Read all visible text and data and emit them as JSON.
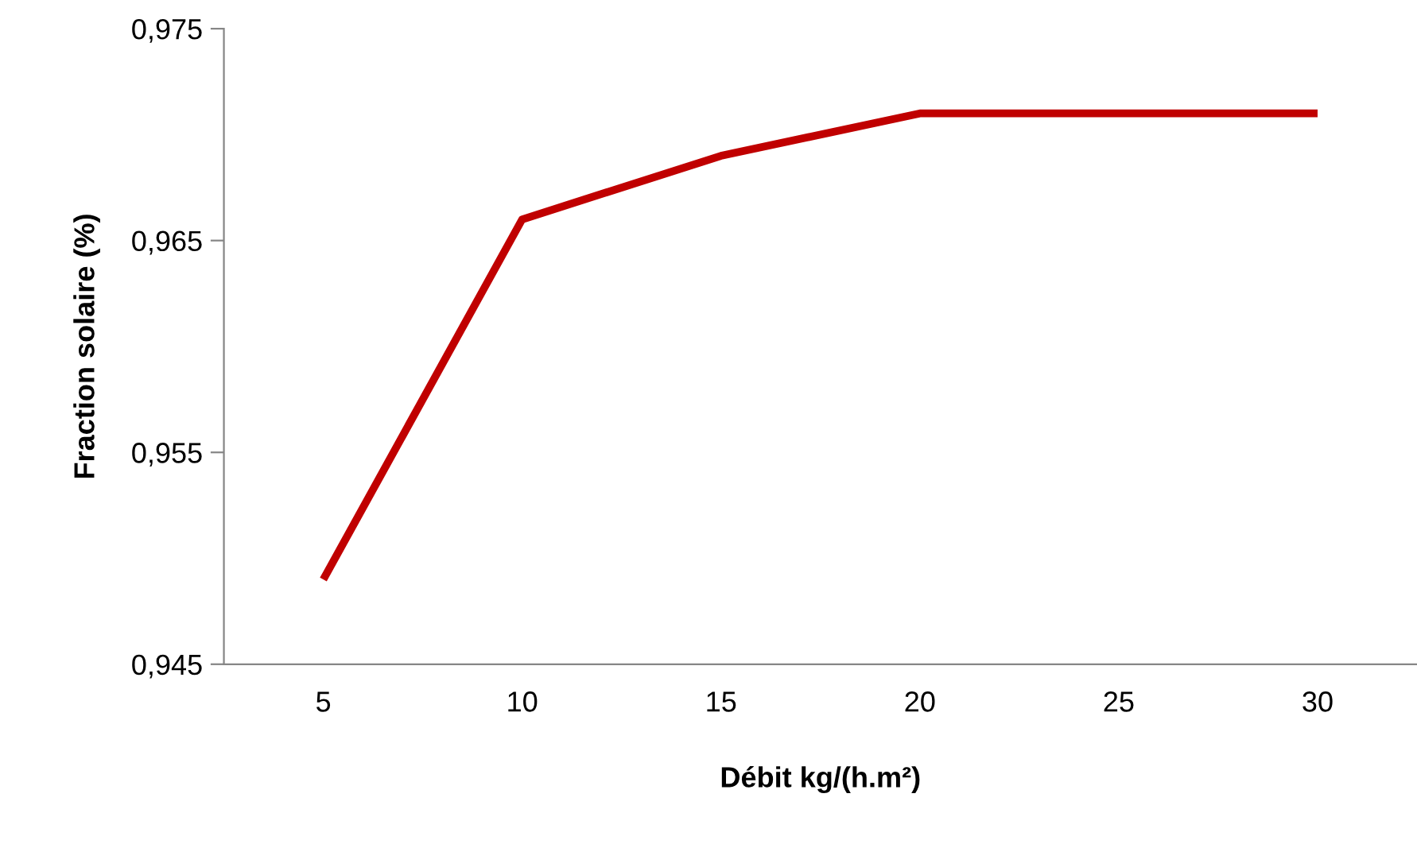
{
  "chart_data": {
    "type": "line",
    "xlabel": "Débit kg/(h.m²)",
    "ylabel": "Fraction solaire (%)",
    "categories": [
      "5",
      "10",
      "15",
      "20",
      "25",
      "30"
    ],
    "series": [
      {
        "color": "#c00000",
        "values": [
          0.949,
          0.966,
          0.969,
          0.971,
          0.971,
          0.971
        ]
      }
    ],
    "ylim": [
      0.945,
      0.975
    ],
    "yticks": [
      {
        "value": 0.945,
        "label": "0,945"
      },
      {
        "value": 0.955,
        "label": "0,955"
      },
      {
        "value": 0.965,
        "label": "0,965"
      },
      {
        "value": 0.975,
        "label": "0,975"
      }
    ],
    "grid": false,
    "legend": false,
    "marker": "none",
    "line_style": "solid"
  }
}
